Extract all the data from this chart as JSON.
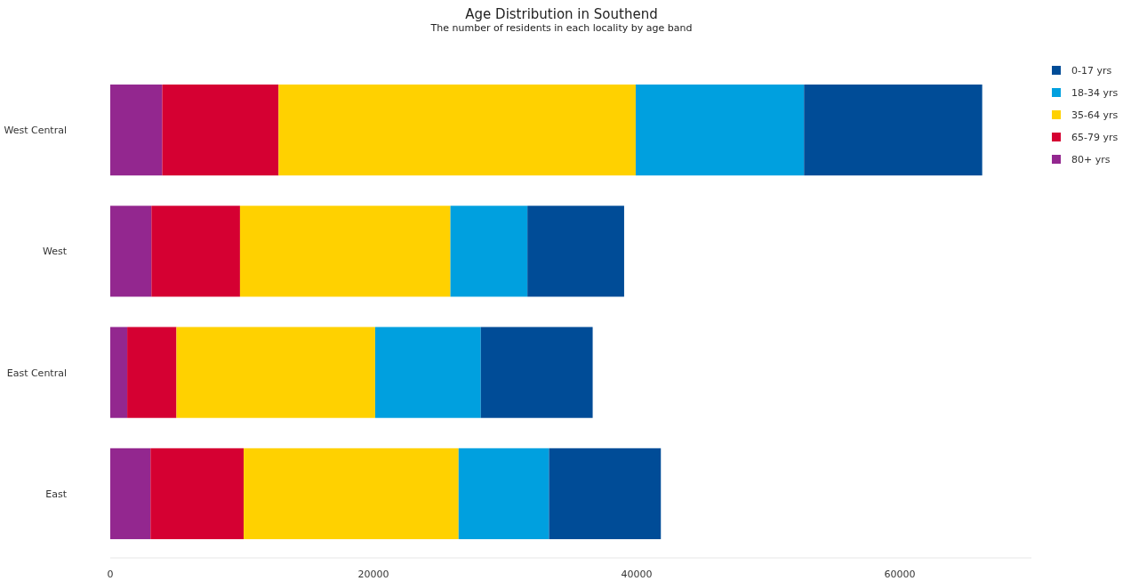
{
  "chart_data": {
    "type": "bar",
    "orientation": "horizontal",
    "stacked": true,
    "title": "Age Distribution in Southend",
    "subtitle": "The number of residents in each locality by age band",
    "categories": [
      "West Central",
      "West",
      "East Central",
      "East"
    ],
    "series": [
      {
        "name": "80+ yrs",
        "color": "#93278f",
        "values": [
          3950,
          3130,
          1290,
          3060
        ]
      },
      {
        "name": "65-79 yrs",
        "color": "#d50032",
        "values": [
          8840,
          6730,
          3740,
          7080
        ]
      },
      {
        "name": "35-64 yrs",
        "color": "#ffd100",
        "values": [
          27140,
          15990,
          15100,
          16330
        ]
      },
      {
        "name": "18-34 yrs",
        "color": "#00a0df",
        "values": [
          12790,
          5850,
          8030,
          6870
        ]
      },
      {
        "name": "0-17 yrs",
        "color": "#004c97",
        "values": [
          13540,
          7350,
          8500,
          8500
        ]
      }
    ],
    "xlim": [
      0,
      70000
    ],
    "xticks": [
      0,
      20000,
      40000,
      60000
    ],
    "grid": false,
    "legend": "right"
  }
}
